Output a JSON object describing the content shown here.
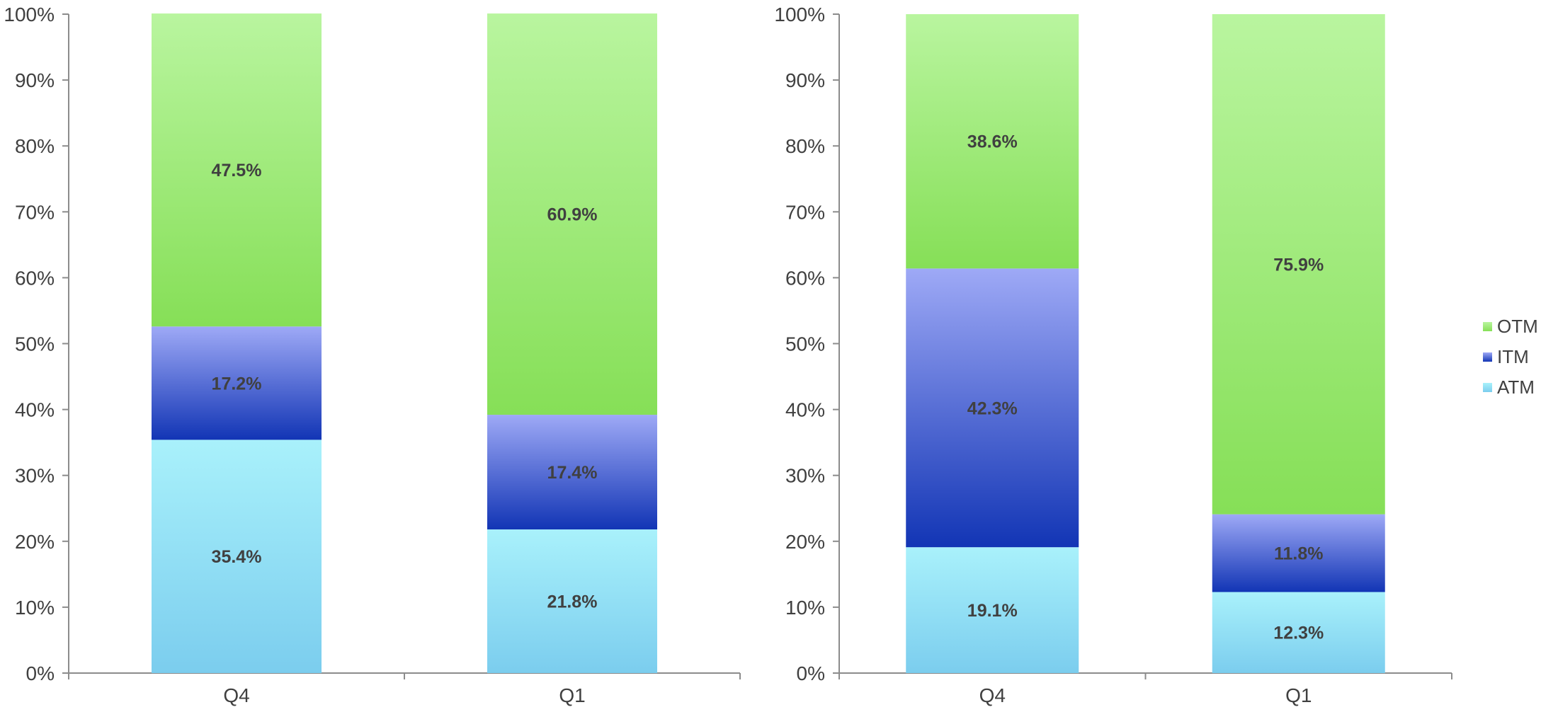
{
  "chart_data": [
    {
      "type": "bar",
      "stacked": true,
      "categories": [
        "Q4",
        "Q1"
      ],
      "ylim": [
        0,
        100
      ],
      "yticks": [
        "0%",
        "10%",
        "20%",
        "30%",
        "40%",
        "50%",
        "60%",
        "70%",
        "80%",
        "90%",
        "100%"
      ],
      "grid": false,
      "series": [
        {
          "name": "ATM",
          "values": [
            35.4,
            21.8
          ],
          "labels": [
            "35.4%",
            "21.8%"
          ]
        },
        {
          "name": "ITM",
          "values": [
            17.2,
            17.4
          ],
          "labels": [
            "17.2%",
            "17.4%"
          ]
        },
        {
          "name": "OTM",
          "values": [
            47.5,
            60.9
          ],
          "labels": [
            "47.5%",
            "60.9%"
          ]
        }
      ]
    },
    {
      "type": "bar",
      "stacked": true,
      "categories": [
        "Q4",
        "Q1"
      ],
      "ylim": [
        0,
        100
      ],
      "yticks": [
        "0%",
        "10%",
        "20%",
        "30%",
        "40%",
        "50%",
        "60%",
        "70%",
        "80%",
        "90%",
        "100%"
      ],
      "grid": false,
      "series": [
        {
          "name": "ATM",
          "values": [
            19.1,
            12.3
          ],
          "labels": [
            "19.1%",
            "12.3%"
          ]
        },
        {
          "name": "ITM",
          "values": [
            42.3,
            11.8
          ],
          "labels": [
            "42.3%",
            "11.8%"
          ]
        },
        {
          "name": "OTM",
          "values": [
            38.6,
            75.9
          ],
          "labels": [
            "38.6%",
            "75.9%"
          ]
        }
      ]
    }
  ],
  "legend": {
    "placement": "right",
    "items": [
      {
        "name": "OTM",
        "color": "#8fe05a"
      },
      {
        "name": "ITM",
        "color": "#2f52c8"
      },
      {
        "name": "ATM",
        "color": "#7fd4f0"
      }
    ]
  },
  "colors": {
    "ATM": {
      "top": "#a9f1fb",
      "bottom": "#7bcdee"
    },
    "ITM": {
      "top": "#9ea9f6",
      "bottom": "#1235b5"
    },
    "OTM": {
      "top": "#b9f59f",
      "bottom": "#86df57"
    },
    "axis": "#8c8c8c",
    "text": "#404040"
  }
}
